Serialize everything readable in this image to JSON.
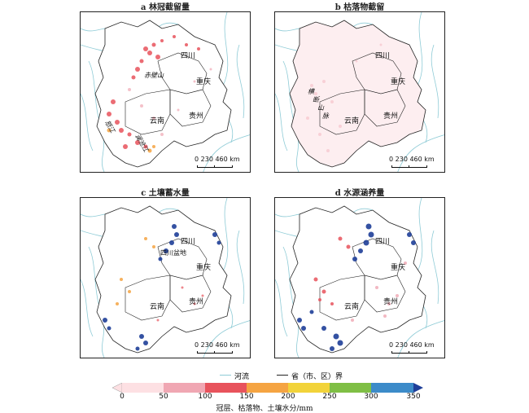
{
  "panels": [
    {
      "id": "a",
      "title": "a 林冠截留量",
      "labels": {
        "sichuan": "四川",
        "chongqing": "重庆",
        "guizhou": "贵州",
        "yunnan": "云南"
      },
      "extra_labels": [
        "赤壁山",
        "怒江",
        "澜沧江"
      ]
    },
    {
      "id": "b",
      "title": "b 枯落物截留",
      "labels": {
        "sichuan": "四川",
        "chongqing": "重庆",
        "guizhou": "贵州",
        "yunnan": "云南"
      },
      "extra_labels": [
        "横",
        "断",
        "山",
        "脉"
      ]
    },
    {
      "id": "c",
      "title": "c 土壤蓄水量",
      "labels": {
        "sichuan": "四川",
        "chongqing": "重庆",
        "guizhou": "贵州",
        "yunnan": "云南"
      },
      "extra_labels": [
        "四川盆地"
      ]
    },
    {
      "id": "d",
      "title": "d 水源涵养量",
      "labels": {
        "sichuan": "四川",
        "chongqing": "重庆",
        "guizhou": "贵州",
        "yunnan": "云南"
      },
      "extra_labels": []
    }
  ],
  "scalebar": {
    "text": "0  230 460 km"
  },
  "legend": {
    "river": "河流",
    "boundary": "省（市、区）界"
  },
  "colorbar": {
    "ticks": [
      "0",
      "50",
      "100",
      "150",
      "200",
      "250",
      "300",
      "350"
    ],
    "colors": [
      "#fde0e3",
      "#f0a7b3",
      "#e8535c",
      "#f5a442",
      "#f2d33a",
      "#7fbf45",
      "#3c8bc9",
      "#1f3f99"
    ],
    "label": "冠层、枯落物、土壤水分/mm"
  },
  "colors": {
    "river": "#8ecbd6",
    "boundary": "#222222"
  }
}
